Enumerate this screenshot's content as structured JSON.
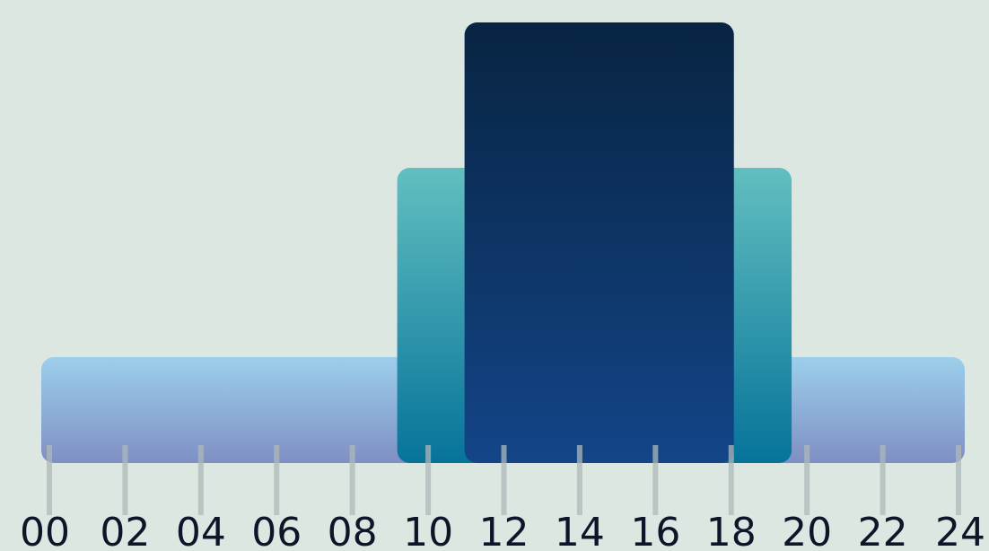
{
  "chart_data": {
    "type": "area",
    "title": "",
    "xlabel": "",
    "ylabel": "",
    "x_ticks": [
      "00",
      "02",
      "04",
      "06",
      "08",
      "10",
      "12",
      "14",
      "16",
      "18",
      "20",
      "22",
      "24"
    ],
    "xlim": [
      0,
      24
    ],
    "ylim": [
      0,
      3
    ],
    "grid": false,
    "legend": "none",
    "bands": [
      {
        "start": 0,
        "end": 24,
        "level": 1,
        "color_top": "#9ccfeb",
        "color_bottom": "#7f8fc4"
      },
      {
        "start": 9.25,
        "end": 19.5,
        "level": 2,
        "color_top": "#62bfc0",
        "color_bottom": "#06739a"
      },
      {
        "start": 11,
        "end": 18,
        "level": 3,
        "color_top": "#082442",
        "color_bottom": "#134588"
      }
    ],
    "colors": {
      "background": "#dce7e2",
      "tick_line": "#aeb8b8",
      "tick_text": "#0d1528"
    }
  }
}
